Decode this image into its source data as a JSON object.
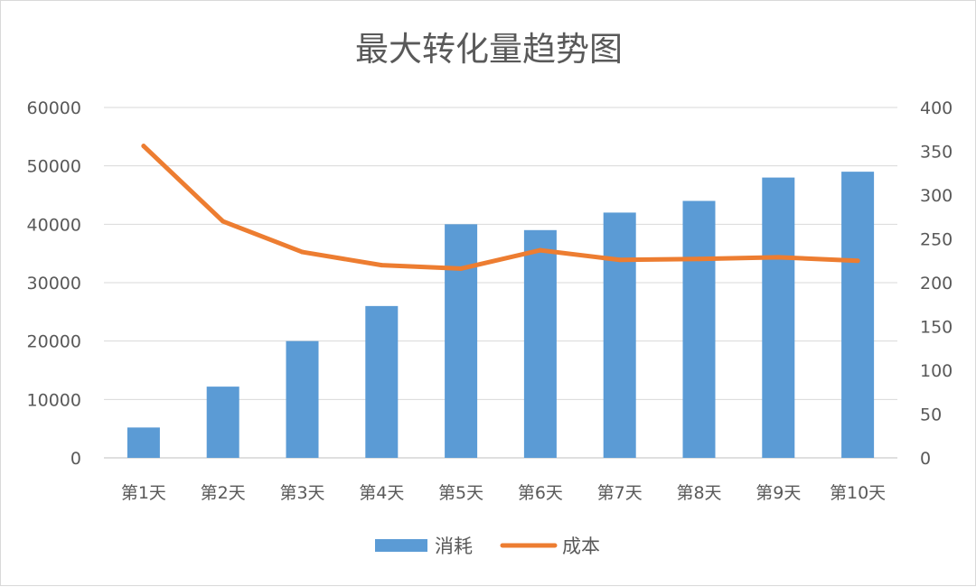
{
  "chart_data": {
    "type": "bar",
    "title": "最大转化量趋势图",
    "categories": [
      "第1天",
      "第2天",
      "第3天",
      "第4天",
      "第5天",
      "第6天",
      "第7天",
      "第8天",
      "第9天",
      "第10天"
    ],
    "series": [
      {
        "name": "消耗",
        "type": "bar",
        "axis": "left",
        "color": "#5b9bd5",
        "values": [
          5200,
          12200,
          20000,
          26000,
          40000,
          39000,
          42000,
          44000,
          48000,
          49000
        ]
      },
      {
        "name": "成本",
        "type": "line",
        "axis": "right",
        "color": "#ed7d31",
        "values": [
          356,
          270,
          235,
          220,
          216,
          237,
          226,
          227,
          229,
          225
        ]
      }
    ],
    "y_left": {
      "min": 0,
      "max": 60000,
      "ticks": [
        "0",
        "10000",
        "20000",
        "30000",
        "40000",
        "50000",
        "60000"
      ]
    },
    "y_right": {
      "min": 0,
      "max": 400,
      "ticks": [
        "0",
        "50",
        "100",
        "150",
        "200",
        "250",
        "300",
        "350",
        "400"
      ]
    },
    "grid": true,
    "legend": "bottom"
  }
}
